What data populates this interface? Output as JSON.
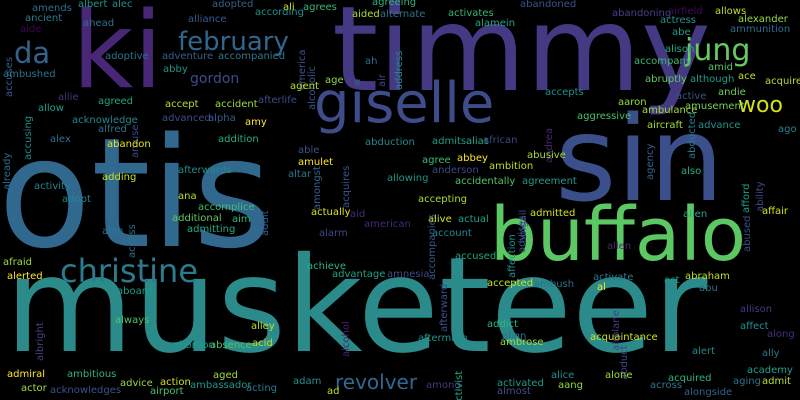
{
  "words": [
    {
      "text": "otis",
      "color": "#31688e"
    },
    {
      "text": "musketeer",
      "color": "#2a8b8a"
    },
    {
      "text": "timmy",
      "color": "#443a83"
    },
    {
      "text": "sin",
      "color": "#3b4f8a"
    },
    {
      "text": "ki",
      "color": "#482876"
    },
    {
      "text": "buffalo",
      "color": "#5cc863"
    },
    {
      "text": "giselle",
      "color": "#3e4c8a"
    },
    {
      "text": "christine",
      "color": "#2a7b8e"
    },
    {
      "text": "jung",
      "color": "#65cb5e"
    },
    {
      "text": "february",
      "color": "#31668e"
    },
    {
      "text": "da",
      "color": "#33638d"
    },
    {
      "text": "woo",
      "color": "#d2e21b"
    },
    {
      "text": "revolver",
      "color": "#31688e"
    },
    {
      "text": "gordon",
      "color": "#3e4a89"
    },
    {
      "text": "ali",
      "color": "#d5e21a"
    },
    {
      "text": "abandoned",
      "color": "#3a548c"
    },
    {
      "text": "airfield",
      "color": "#46075a"
    },
    {
      "text": "allows",
      "color": "#bddf26"
    },
    {
      "text": "alexander",
      "color": "#95d840"
    },
    {
      "text": "adopted",
      "color": "#355f8d"
    },
    {
      "text": "according",
      "color": "#20928c"
    },
    {
      "text": "agrees",
      "color": "#35b779"
    },
    {
      "text": "agreeing",
      "color": "#2db27d"
    },
    {
      "text": "activates",
      "color": "#32b67a"
    },
    {
      "text": "alamein",
      "color": "#22a785"
    },
    {
      "text": "abandoning",
      "color": "#424086"
    },
    {
      "text": "amends",
      "color": "#2e6e8e"
    },
    {
      "text": "albert",
      "color": "#1f988b"
    },
    {
      "text": "alec",
      "color": "#21918c"
    },
    {
      "text": "ancient",
      "color": "#287d8e"
    },
    {
      "text": "aide",
      "color": "#440154"
    },
    {
      "text": "alliance",
      "color": "#375a8c"
    },
    {
      "text": "ahead",
      "color": "#2e6f8e"
    },
    {
      "text": "aided",
      "color": "#b2dd2d"
    },
    {
      "text": "alternate",
      "color": "#2c728e"
    },
    {
      "text": "actress",
      "color": "#20938c"
    },
    {
      "text": "abe",
      "color": "#1e9c89"
    },
    {
      "text": "ammunition",
      "color": "#2f6b8e"
    },
    {
      "text": "accuses",
      "color": "#365c8d"
    },
    {
      "text": "america",
      "color": "#3b528b"
    },
    {
      "text": "alison",
      "color": "#25ab82"
    },
    {
      "text": "amid",
      "color": "#56c667"
    },
    {
      "text": "accompany",
      "color": "#3aba76"
    },
    {
      "text": "adoptive",
      "color": "#2c728e"
    },
    {
      "text": "accompanied",
      "color": "#2a788e"
    },
    {
      "text": "adventure",
      "color": "#34608d"
    },
    {
      "text": "abby",
      "color": "#20928c"
    },
    {
      "text": "alcoholic",
      "color": "#38588c"
    },
    {
      "text": "air",
      "color": "#3f4788"
    },
    {
      "text": "address",
      "color": "#228c8d"
    },
    {
      "text": "ah",
      "color": "#2d708e"
    },
    {
      "text": "agent",
      "color": "#bade28"
    },
    {
      "text": "age",
      "color": "#90d743"
    },
    {
      "text": "abruptly",
      "color": "#5ec962"
    },
    {
      "text": "although",
      "color": "#1f9e89"
    },
    {
      "text": "ace",
      "color": "#c2df23"
    },
    {
      "text": "acquire",
      "color": "#b8de29"
    },
    {
      "text": "ambushed",
      "color": "#2c738e"
    },
    {
      "text": "allie",
      "color": "#46337f"
    },
    {
      "text": "allow",
      "color": "#1fa088"
    },
    {
      "text": "agreed",
      "color": "#20a386"
    },
    {
      "text": "accept",
      "color": "#b5de2b"
    },
    {
      "text": "accident",
      "color": "#a0da39"
    },
    {
      "text": "afterlife",
      "color": "#3e4989"
    },
    {
      "text": "accepts",
      "color": "#20928c"
    },
    {
      "text": "andie",
      "color": "#6ece58"
    },
    {
      "text": "active",
      "color": "#3b528b"
    },
    {
      "text": "amusement",
      "color": "#7ad151"
    },
    {
      "text": "aaron",
      "color": "#95d840"
    },
    {
      "text": "ambulance",
      "color": "#a2da37"
    },
    {
      "text": "aggressive",
      "color": "#4ac16d"
    },
    {
      "text": "accusing",
      "color": "#228b8d"
    },
    {
      "text": "acknowledge",
      "color": "#23888e"
    },
    {
      "text": "alfred",
      "color": "#2d708e"
    },
    {
      "text": "amuse",
      "color": "#3f4889"
    },
    {
      "text": "advanced",
      "color": "#3d4e8a"
    },
    {
      "text": "alpha",
      "color": "#365d8d"
    },
    {
      "text": "amy",
      "color": "#fde725"
    },
    {
      "text": "aircraft",
      "color": "#a5db36"
    },
    {
      "text": "advance",
      "color": "#21918c"
    },
    {
      "text": "ago",
      "color": "#25848e"
    },
    {
      "text": "alex",
      "color": "#2c718e"
    },
    {
      "text": "addition",
      "color": "#27ad81"
    },
    {
      "text": "abandon",
      "color": "#e5e419"
    },
    {
      "text": "able",
      "color": "#3b528b"
    },
    {
      "text": "abduction",
      "color": "#23888e"
    },
    {
      "text": "admits",
      "color": "#1e9b8a"
    },
    {
      "text": "alias",
      "color": "#22a884"
    },
    {
      "text": "african",
      "color": "#404588"
    },
    {
      "text": "andrea",
      "color": "#482677"
    },
    {
      "text": "agency",
      "color": "#33628d"
    },
    {
      "text": "abducted",
      "color": "#29798e"
    },
    {
      "text": "afford",
      "color": "#1f9f88"
    },
    {
      "text": "ability",
      "color": "#3e4989"
    },
    {
      "text": "already",
      "color": "#2f6c8e"
    },
    {
      "text": "amulet",
      "color": "#fde725"
    },
    {
      "text": "altar",
      "color": "#2a788e"
    },
    {
      "text": "amongst",
      "color": "#34618d"
    },
    {
      "text": "acquires",
      "color": "#39568c"
    },
    {
      "text": "agree",
      "color": "#3dbc74"
    },
    {
      "text": "abbey",
      "color": "#fde725"
    },
    {
      "text": "ambition",
      "color": "#bddf26"
    },
    {
      "text": "abusive",
      "color": "#a2da37"
    },
    {
      "text": "anderson",
      "color": "#3f4788"
    },
    {
      "text": "allowing",
      "color": "#20928c"
    },
    {
      "text": "accidentally",
      "color": "#4ec36b"
    },
    {
      "text": "agreement",
      "color": "#1f9a8a"
    },
    {
      "text": "also",
      "color": "#29af7f"
    },
    {
      "text": "adding",
      "color": "#c8e020"
    },
    {
      "text": "afterwards",
      "color": "#23898e"
    },
    {
      "text": "activity",
      "color": "#26828e"
    },
    {
      "text": "adopt",
      "color": "#24868e"
    },
    {
      "text": "ana",
      "color": "#b8de29"
    },
    {
      "text": "adult",
      "color": "#365c8d"
    },
    {
      "text": "accomplice",
      "color": "#42be71"
    },
    {
      "text": "additional",
      "color": "#5ec962"
    },
    {
      "text": "aim",
      "color": "#2fb47c"
    },
    {
      "text": "admitting",
      "color": "#25ac82"
    },
    {
      "text": "actually",
      "color": "#e2e418"
    },
    {
      "text": "aid",
      "color": "#472c7a"
    },
    {
      "text": "american",
      "color": "#482878"
    },
    {
      "text": "alarm",
      "color": "#3f4788"
    },
    {
      "text": "accepting",
      "color": "#a8db34"
    },
    {
      "text": "alive",
      "color": "#d0e11c"
    },
    {
      "text": "actual",
      "color": "#1fa188"
    },
    {
      "text": "abigail",
      "color": "#3e4a89"
    },
    {
      "text": "advises",
      "color": "#3b528b"
    },
    {
      "text": "admitted",
      "color": "#d2e21b"
    },
    {
      "text": "abused",
      "color": "#3c4f8a"
    },
    {
      "text": "affair",
      "color": "#d8e219"
    },
    {
      "text": "alien",
      "color": "#22a785"
    },
    {
      "text": "allen",
      "color": "#482878"
    },
    {
      "text": "alan",
      "color": "#2a778e"
    },
    {
      "text": "access",
      "color": "#2d718e"
    },
    {
      "text": "account",
      "color": "#23898e"
    },
    {
      "text": "afraid",
      "color": "#a2da37"
    },
    {
      "text": "accused",
      "color": "#20a486"
    },
    {
      "text": "achieve",
      "color": "#2fb47c"
    },
    {
      "text": "advantage",
      "color": "#20a386"
    },
    {
      "text": "amnesia",
      "color": "#3e4a89"
    },
    {
      "text": "accompanies",
      "color": "#38598c"
    },
    {
      "text": "affection",
      "color": "#21918c"
    },
    {
      "text": "activate",
      "color": "#2a788e"
    },
    {
      "text": "abraham",
      "color": "#bddf26"
    },
    {
      "text": "abu",
      "color": "#2c728e"
    },
    {
      "text": "alerted",
      "color": "#fde725"
    },
    {
      "text": "accepted",
      "color": "#c8e020"
    },
    {
      "text": "ambush",
      "color": "#2c718e"
    },
    {
      "text": "al",
      "color": "#fde725"
    },
    {
      "text": "act",
      "color": "#1f968b"
    },
    {
      "text": "aboard",
      "color": "#1f9a8a"
    },
    {
      "text": "afterward",
      "color": "#3b528b"
    },
    {
      "text": "allison",
      "color": "#453882"
    },
    {
      "text": "always",
      "color": "#4ec36b"
    },
    {
      "text": "alley",
      "color": "#c0df25"
    },
    {
      "text": "alcohol",
      "color": "#482173"
    },
    {
      "text": "addict",
      "color": "#2fb47c"
    },
    {
      "text": "airplane",
      "color": "#414287"
    },
    {
      "text": "affect",
      "color": "#21918c"
    },
    {
      "text": "along",
      "color": "#472d7b"
    },
    {
      "text": "albright",
      "color": "#424186"
    },
    {
      "text": "align",
      "color": "#2c718e"
    },
    {
      "text": "ambrose",
      "color": "#a0da39"
    },
    {
      "text": "abortion",
      "color": "#1f9a8a"
    },
    {
      "text": "absence",
      "color": "#4ac16d"
    },
    {
      "text": "acid",
      "color": "#c2df23"
    },
    {
      "text": "aftermath",
      "color": "#21918c"
    },
    {
      "text": "acquaintance",
      "color": "#d0e11c"
    },
    {
      "text": "abduct",
      "color": "#3f4788"
    },
    {
      "text": "alert",
      "color": "#23888e"
    },
    {
      "text": "ally",
      "color": "#2a778e"
    },
    {
      "text": "admiral",
      "color": "#fde725"
    },
    {
      "text": "ambitious",
      "color": "#2fb47c"
    },
    {
      "text": "advice",
      "color": "#95d840"
    },
    {
      "text": "action",
      "color": "#d2e21b"
    },
    {
      "text": "aged",
      "color": "#a5db36"
    },
    {
      "text": "ambassador",
      "color": "#1f968b"
    },
    {
      "text": "adam",
      "color": "#20928c"
    },
    {
      "text": "ad",
      "color": "#c2df23"
    },
    {
      "text": "among",
      "color": "#46337f"
    },
    {
      "text": "activist",
      "color": "#22a785"
    },
    {
      "text": "activated",
      "color": "#1f9a8a"
    },
    {
      "text": "alice",
      "color": "#20928c"
    },
    {
      "text": "almost",
      "color": "#3b528b"
    },
    {
      "text": "aang",
      "color": "#95d840"
    },
    {
      "text": "alone",
      "color": "#a5db36"
    },
    {
      "text": "acquired",
      "color": "#2fb47c"
    },
    {
      "text": "across",
      "color": "#2a788e"
    },
    {
      "text": "aging",
      "color": "#2c718e"
    },
    {
      "text": "academy",
      "color": "#20a386"
    },
    {
      "text": "admit",
      "color": "#b5de2b"
    },
    {
      "text": "alongside",
      "color": "#34618d"
    },
    {
      "text": "actor",
      "color": "#a0da39"
    },
    {
      "text": "acknowledges",
      "color": "#3b528b"
    },
    {
      "text": "acting",
      "color": "#2a788e"
    },
    {
      "text": "airport",
      "color": "#4ac16d"
    }
  ]
}
